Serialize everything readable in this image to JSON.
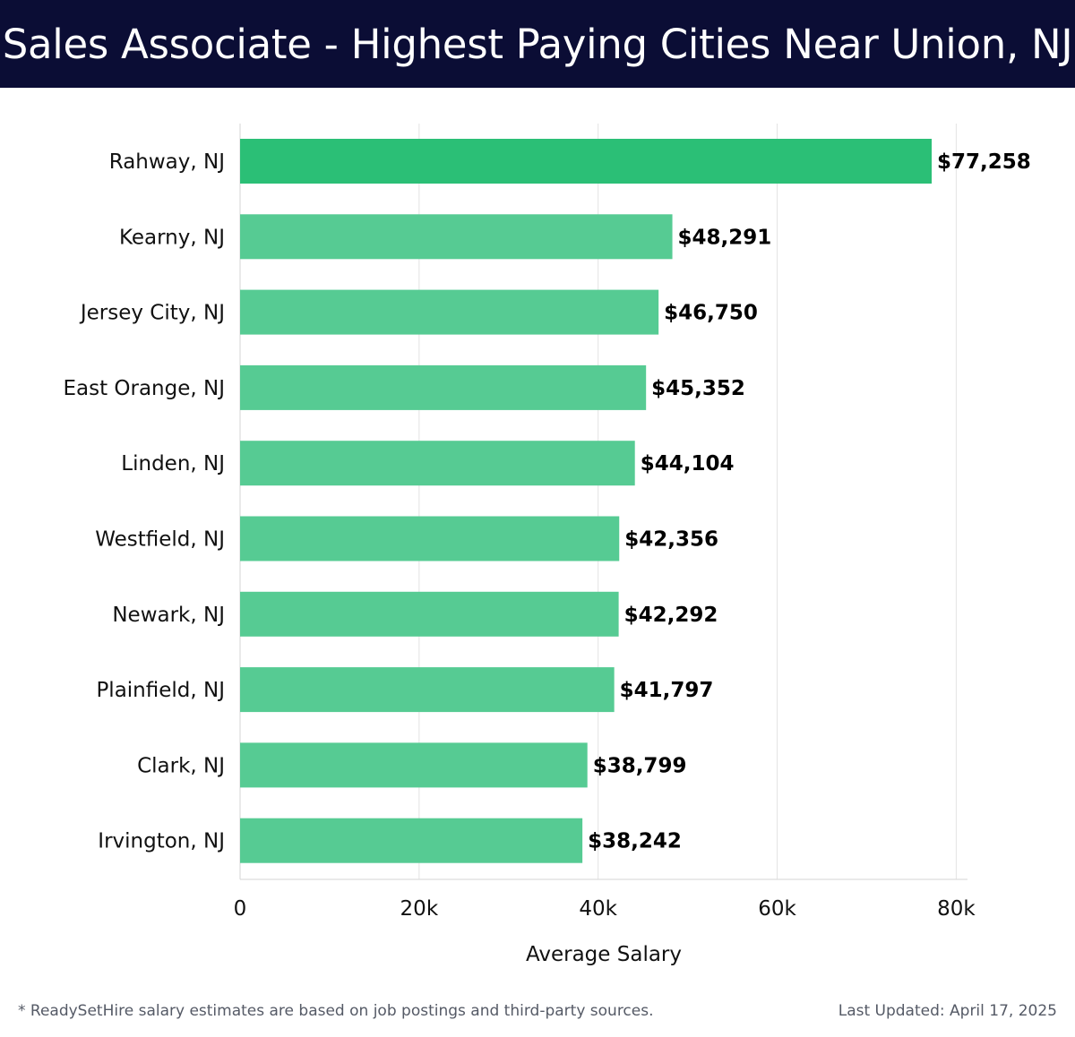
{
  "header": {
    "title": "Sales Associate - Highest Paying Cities Near Union, NJ"
  },
  "chart_data": {
    "type": "bar",
    "orientation": "horizontal",
    "categories": [
      "Rahway, NJ",
      "Kearny, NJ",
      "Jersey City, NJ",
      "East Orange, NJ",
      "Linden, NJ",
      "Westfield, NJ",
      "Newark, NJ",
      "Plainfield, NJ",
      "Clark, NJ",
      "Irvington, NJ"
    ],
    "values": [
      77258,
      48291,
      46750,
      45352,
      44104,
      42356,
      42292,
      41797,
      38799,
      38242
    ],
    "value_labels": [
      "$77,258",
      "$48,291",
      "$46,750",
      "$45,352",
      "$44,104",
      "$42,356",
      "$42,292",
      "$41,797",
      "$38,799",
      "$38,242"
    ],
    "xlabel": "Average Salary",
    "ylabel": "",
    "xlim": [
      0,
      80000
    ],
    "ticks": [
      0,
      20000,
      40000,
      60000,
      80000
    ],
    "tick_labels": [
      "0",
      "20k",
      "40k",
      "60k",
      "80k"
    ],
    "grid": true,
    "colors": {
      "top_bar": "#2bbf76",
      "bar": "#56cb93",
      "grid": "#e3e3e3",
      "axis_text": "#111111"
    }
  },
  "footer": {
    "note": "* ReadySetHire salary estimates are based on job postings and third-party sources.",
    "updated": "Last Updated: April 17, 2025"
  }
}
